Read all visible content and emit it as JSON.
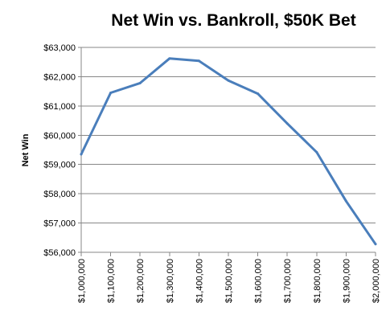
{
  "chart_data": {
    "type": "line",
    "title": "Net Win vs. Bankroll, $50K Bet",
    "xlabel": "",
    "ylabel": "Net Win",
    "x": [
      1000000,
      1100000,
      1200000,
      1300000,
      1400000,
      1500000,
      1600000,
      1700000,
      1800000,
      1900000,
      2000000
    ],
    "x_tick_labels": [
      "$1,000,000",
      "$1,100,000",
      "$1,200,000",
      "$1,300,000",
      "$1,400,000",
      "$1,500,000",
      "$1,600,000",
      "$1,700,000",
      "$1,800,000",
      "$1,900,000",
      "$2,000,000"
    ],
    "series": [
      {
        "values": [
          59350,
          61450,
          61780,
          62620,
          62540,
          61870,
          61420,
          60400,
          59420,
          57750,
          56280
        ],
        "color": "#4a7ebb"
      }
    ],
    "ylim": [
      56000,
      63000
    ],
    "y_ticks": [
      56000,
      57000,
      58000,
      59000,
      60000,
      61000,
      62000,
      63000
    ],
    "y_tick_labels": [
      "$56,000",
      "$57,000",
      "$58,000",
      "$59,000",
      "$60,000",
      "$61,000",
      "$62,000",
      "$63,000"
    ],
    "grid": "horizontal",
    "grid_color": "#878787",
    "legend": "none"
  }
}
